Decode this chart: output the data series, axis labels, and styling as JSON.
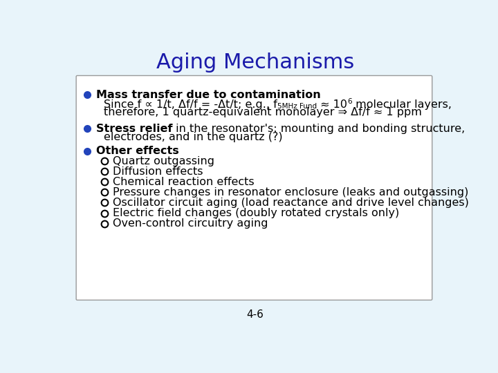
{
  "title": "Aging Mechanisms",
  "title_color": "#1a1aaa",
  "title_fontsize": 22,
  "background_color": "#E8F4FA",
  "box_background": "#FFFFFF",
  "footer": "4-6",
  "bullet_color": "#2244BB",
  "bullet1_bold": "Mass transfer due to contamination",
  "bullet1_line2a": "Since f ∝ 1/t, Δf/f = -Δt/t; e.g., f",
  "bullet1_sub": "5MHz Fund",
  "bullet1_mid": " ≈ 10",
  "bullet1_sup": "6",
  "bullet1_end": " molecular layers,",
  "bullet1_line3": "therefore, 1 quartz-equivalent monolayer ⇒ Δf/f ≈ 1 ppm",
  "bullet2_bold": "Stress relief",
  "bullet2_rest": " in the resonator's: mounting and bonding structure,",
  "bullet2_line2": "electrodes, and in the quartz (?)",
  "bullet3_bold": "Other effects",
  "sub_items": [
    "Quartz outgassing",
    "Diffusion effects",
    "Chemical reaction effects",
    "Pressure changes in resonator enclosure (leaks and outgassing)",
    "Oscillator circuit aging (load reactance and drive level changes)",
    "Electric field changes (doubly rotated crystals only)",
    "Oven-control circuitry aging"
  ]
}
